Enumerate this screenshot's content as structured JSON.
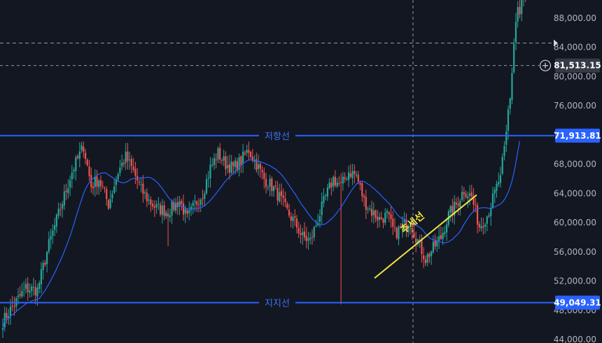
{
  "chart_data": {
    "type": "candlestick",
    "ylim": [
      42000,
      92500
    ],
    "price_ticks": [
      44000,
      48000,
      52000,
      56000,
      60000,
      64000,
      68000,
      72000,
      76000,
      80000,
      84000,
      88000
    ],
    "price_tick_labels": [
      "44,000.00",
      "48,000.00",
      "52,000.00",
      "56,000.00",
      "60,000.00",
      "64,000.00",
      "68,000.00",
      "72,000.00",
      "76,000.00",
      "80,000.00",
      "84,000.00",
      "88,000.00"
    ],
    "levels": {
      "resistance": {
        "price": 71913.81,
        "label": "저항선",
        "badge": "71,913.81"
      },
      "support": {
        "price": 49049.31,
        "label": "지지선",
        "badge": "49,049.31"
      },
      "crosshair": {
        "price": 81513.15,
        "badge": "81,513.15"
      },
      "dashed": {
        "price": 84600
      }
    },
    "trendline": {
      "label": "추세선",
      "start_price": 52400,
      "end_price": 63800
    },
    "bar_count": 260,
    "close_anchors": [
      [
        0,
        46500
      ],
      [
        5,
        48500
      ],
      [
        12,
        51000
      ],
      [
        18,
        50800
      ],
      [
        24,
        57000
      ],
      [
        30,
        62000
      ],
      [
        36,
        67000
      ],
      [
        42,
        70500
      ],
      [
        46,
        65000
      ],
      [
        50,
        66000
      ],
      [
        55,
        62500
      ],
      [
        60,
        67000
      ],
      [
        64,
        69000
      ],
      [
        68,
        67000
      ],
      [
        72,
        64500
      ],
      [
        76,
        63000
      ],
      [
        80,
        62000
      ],
      [
        86,
        61500
      ],
      [
        92,
        63000
      ],
      [
        96,
        60500
      ],
      [
        100,
        62500
      ],
      [
        104,
        64000
      ],
      [
        108,
        67500
      ],
      [
        112,
        69500
      ],
      [
        116,
        68000
      ],
      [
        120,
        67500
      ],
      [
        124,
        68500
      ],
      [
        128,
        70000
      ],
      [
        132,
        68000
      ],
      [
        136,
        66000
      ],
      [
        140,
        65000
      ],
      [
        144,
        63500
      ],
      [
        148,
        61500
      ],
      [
        152,
        60000
      ],
      [
        156,
        58000
      ],
      [
        160,
        57500
      ],
      [
        164,
        60500
      ],
      [
        168,
        63500
      ],
      [
        172,
        66000
      ],
      [
        176,
        65000
      ],
      [
        180,
        67000
      ],
      [
        184,
        66500
      ],
      [
        188,
        63000
      ],
      [
        192,
        61500
      ],
      [
        196,
        60500
      ],
      [
        200,
        61000
      ],
      [
        204,
        58500
      ],
      [
        208,
        59500
      ],
      [
        212,
        60000
      ],
      [
        216,
        57500
      ],
      [
        220,
        55000
      ],
      [
        224,
        56500
      ],
      [
        228,
        58000
      ],
      [
        232,
        61000
      ],
      [
        236,
        62500
      ],
      [
        240,
        64500
      ],
      [
        244,
        63500
      ],
      [
        248,
        59500
      ],
      [
        252,
        61000
      ],
      [
        256,
        64000
      ],
      [
        259,
        66500
      ]
    ],
    "ma_period": 20,
    "colors": {
      "bull": "#26a69a",
      "bear": "#ef5350",
      "ma": "#2962ff",
      "level": "#2962ff",
      "trend": "#f0e442",
      "grid_dash": "#9598a1",
      "badge": "#2962ff",
      "crosshair_badge": "#363a45"
    }
  }
}
